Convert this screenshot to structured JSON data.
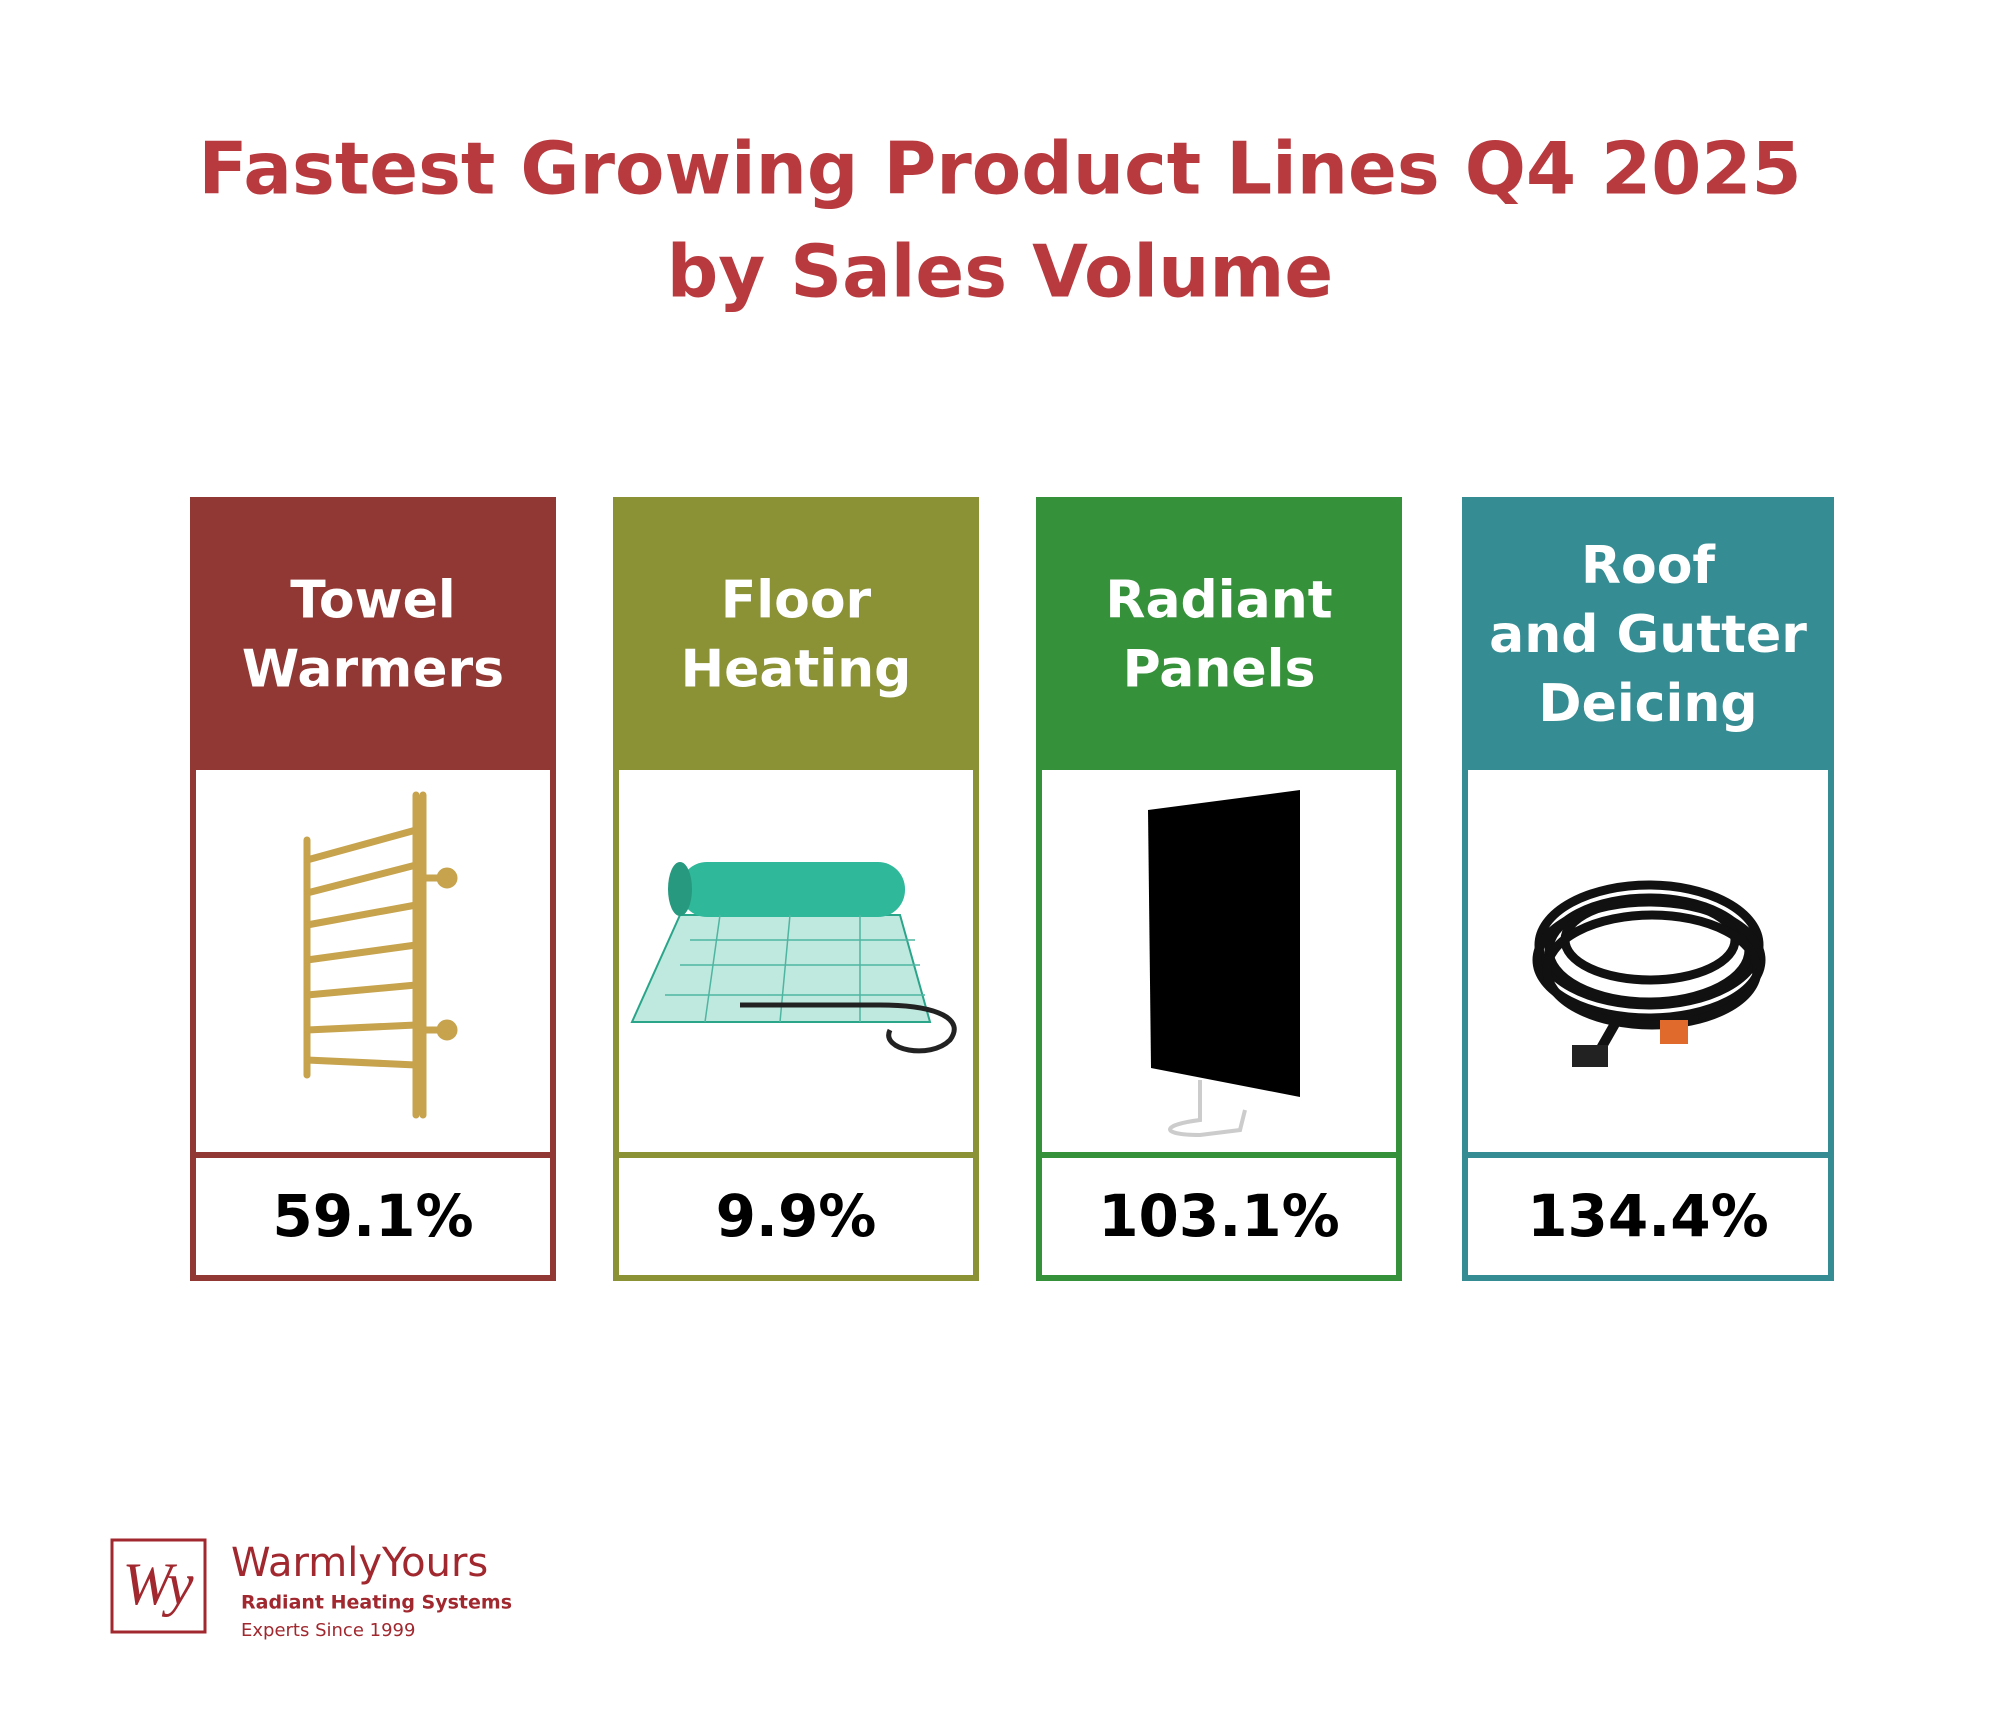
{
  "header": {
    "title_lines": [
      "Fastest Growing Product Lines Q4 2025",
      "by Sales Volume"
    ]
  },
  "cards": [
    {
      "name_lines": [
        "Towel",
        "Warmers"
      ],
      "value": "59.1%",
      "color": "#923834"
    },
    {
      "name_lines": [
        "Floor",
        "Heating"
      ],
      "value": "9.9%",
      "color": "#8a9235"
    },
    {
      "name_lines": [
        "Radiant",
        "Panels"
      ],
      "value": "103.1%",
      "color": "#36923a"
    },
    {
      "name_lines": [
        "Roof",
        "and Gutter",
        "Deicing"
      ],
      "value": "134.4%",
      "color": "#368c93"
    }
  ],
  "logo": {
    "mark": "Wy",
    "brand": "WarmlyYours",
    "tagline": "Radiant Heating Systems",
    "since": "Experts Since 1999"
  }
}
